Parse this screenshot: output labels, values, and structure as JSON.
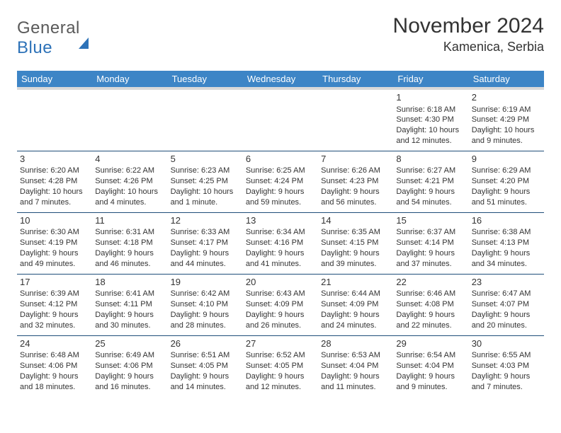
{
  "logo": {
    "word1": "General",
    "word2": "Blue"
  },
  "title": "November 2024",
  "location": "Kamenica, Serbia",
  "style": {
    "header_bg": "#3d85c6",
    "header_fg": "#ffffff",
    "header_underband": "#d9d9d9",
    "row_divider": "#1f4e79",
    "text_color": "#333333",
    "title_fontsize": 30,
    "subtitle_fontsize": 18,
    "dayheader_fontsize": 13,
    "cell_fontsize": 11,
    "page_bg": "#ffffff"
  },
  "day_headers": [
    "Sunday",
    "Monday",
    "Tuesday",
    "Wednesday",
    "Thursday",
    "Friday",
    "Saturday"
  ],
  "weeks": [
    [
      null,
      null,
      null,
      null,
      null,
      {
        "n": "1",
        "sr": "6:18 AM",
        "ss": "4:30 PM",
        "dl": "10 hours and 12 minutes."
      },
      {
        "n": "2",
        "sr": "6:19 AM",
        "ss": "4:29 PM",
        "dl": "10 hours and 9 minutes."
      }
    ],
    [
      {
        "n": "3",
        "sr": "6:20 AM",
        "ss": "4:28 PM",
        "dl": "10 hours and 7 minutes."
      },
      {
        "n": "4",
        "sr": "6:22 AM",
        "ss": "4:26 PM",
        "dl": "10 hours and 4 minutes."
      },
      {
        "n": "5",
        "sr": "6:23 AM",
        "ss": "4:25 PM",
        "dl": "10 hours and 1 minute."
      },
      {
        "n": "6",
        "sr": "6:25 AM",
        "ss": "4:24 PM",
        "dl": "9 hours and 59 minutes."
      },
      {
        "n": "7",
        "sr": "6:26 AM",
        "ss": "4:23 PM",
        "dl": "9 hours and 56 minutes."
      },
      {
        "n": "8",
        "sr": "6:27 AM",
        "ss": "4:21 PM",
        "dl": "9 hours and 54 minutes."
      },
      {
        "n": "9",
        "sr": "6:29 AM",
        "ss": "4:20 PM",
        "dl": "9 hours and 51 minutes."
      }
    ],
    [
      {
        "n": "10",
        "sr": "6:30 AM",
        "ss": "4:19 PM",
        "dl": "9 hours and 49 minutes."
      },
      {
        "n": "11",
        "sr": "6:31 AM",
        "ss": "4:18 PM",
        "dl": "9 hours and 46 minutes."
      },
      {
        "n": "12",
        "sr": "6:33 AM",
        "ss": "4:17 PM",
        "dl": "9 hours and 44 minutes."
      },
      {
        "n": "13",
        "sr": "6:34 AM",
        "ss": "4:16 PM",
        "dl": "9 hours and 41 minutes."
      },
      {
        "n": "14",
        "sr": "6:35 AM",
        "ss": "4:15 PM",
        "dl": "9 hours and 39 minutes."
      },
      {
        "n": "15",
        "sr": "6:37 AM",
        "ss": "4:14 PM",
        "dl": "9 hours and 37 minutes."
      },
      {
        "n": "16",
        "sr": "6:38 AM",
        "ss": "4:13 PM",
        "dl": "9 hours and 34 minutes."
      }
    ],
    [
      {
        "n": "17",
        "sr": "6:39 AM",
        "ss": "4:12 PM",
        "dl": "9 hours and 32 minutes."
      },
      {
        "n": "18",
        "sr": "6:41 AM",
        "ss": "4:11 PM",
        "dl": "9 hours and 30 minutes."
      },
      {
        "n": "19",
        "sr": "6:42 AM",
        "ss": "4:10 PM",
        "dl": "9 hours and 28 minutes."
      },
      {
        "n": "20",
        "sr": "6:43 AM",
        "ss": "4:09 PM",
        "dl": "9 hours and 26 minutes."
      },
      {
        "n": "21",
        "sr": "6:44 AM",
        "ss": "4:09 PM",
        "dl": "9 hours and 24 minutes."
      },
      {
        "n": "22",
        "sr": "6:46 AM",
        "ss": "4:08 PM",
        "dl": "9 hours and 22 minutes."
      },
      {
        "n": "23",
        "sr": "6:47 AM",
        "ss": "4:07 PM",
        "dl": "9 hours and 20 minutes."
      }
    ],
    [
      {
        "n": "24",
        "sr": "6:48 AM",
        "ss": "4:06 PM",
        "dl": "9 hours and 18 minutes."
      },
      {
        "n": "25",
        "sr": "6:49 AM",
        "ss": "4:06 PM",
        "dl": "9 hours and 16 minutes."
      },
      {
        "n": "26",
        "sr": "6:51 AM",
        "ss": "4:05 PM",
        "dl": "9 hours and 14 minutes."
      },
      {
        "n": "27",
        "sr": "6:52 AM",
        "ss": "4:05 PM",
        "dl": "9 hours and 12 minutes."
      },
      {
        "n": "28",
        "sr": "6:53 AM",
        "ss": "4:04 PM",
        "dl": "9 hours and 11 minutes."
      },
      {
        "n": "29",
        "sr": "6:54 AM",
        "ss": "4:04 PM",
        "dl": "9 hours and 9 minutes."
      },
      {
        "n": "30",
        "sr": "6:55 AM",
        "ss": "4:03 PM",
        "dl": "9 hours and 7 minutes."
      }
    ]
  ],
  "labels": {
    "sunrise": "Sunrise: ",
    "sunset": "Sunset: ",
    "daylight": "Daylight: "
  }
}
